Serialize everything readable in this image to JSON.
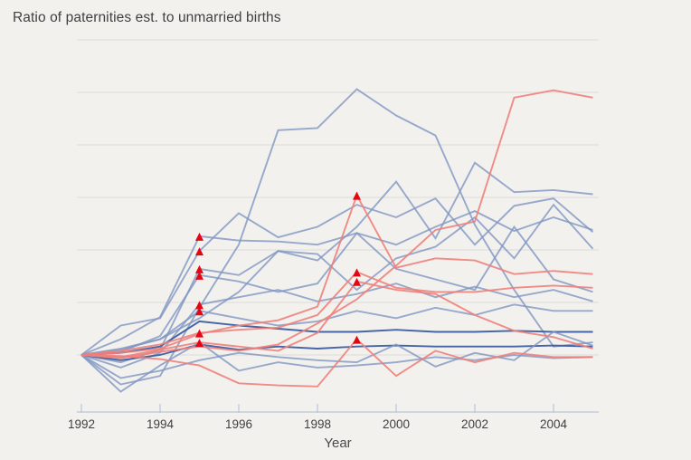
{
  "page": {
    "background": "#f2f1ee"
  },
  "chart_data": {
    "type": "line",
    "title": "Ratio of paternities est. to unmarried births",
    "xlabel": "Year",
    "ylabel": "",
    "x": [
      1992,
      1993,
      1994,
      1995,
      1996,
      1997,
      1998,
      1999,
      2000,
      2001,
      2002,
      2003,
      2004,
      2005
    ],
    "x_ticks": [
      "1992",
      "1994",
      "1996",
      "1998",
      "2000",
      "2002",
      "2004"
    ],
    "x_tick_years": [
      1992,
      1994,
      1996,
      1998,
      2000,
      2002,
      2004
    ],
    "xlim": [
      1992,
      2005.2
    ],
    "y_axis": {
      "tick_labels_visible": false,
      "gridline_values": [
        1.0,
        1.5,
        2.0,
        2.5,
        3.0,
        3.5,
        4.0
      ],
      "baseline_value_1992": 1.0,
      "ylim": [
        0.55,
        4.1
      ]
    },
    "grid": "horizontal-only",
    "legend": "none",
    "colors": {
      "blue": "#8096c2",
      "blue_dark": "#3d5d9f",
      "red": "#f0807a",
      "marker_red": "#e30613",
      "gridline": "#dcdcd8",
      "axis": "#b9c6dc"
    },
    "series": [
      {
        "name": "blue-1-big-peak-1999",
        "group": "blue",
        "shade": "normal",
        "values": [
          1.0,
          0.72,
          0.8,
          1.45,
          2.05,
          3.14,
          3.16,
          3.53,
          3.28,
          3.09,
          2.24,
          1.62,
          1.08,
          1.12
        ]
      },
      {
        "name": "blue-2-zigzag-high",
        "group": "blue",
        "shade": "normal",
        "values": [
          1.0,
          1.05,
          1.15,
          1.35,
          1.6,
          1.99,
          1.9,
          2.22,
          2.65,
          2.11,
          2.83,
          2.55,
          2.57,
          2.53
        ]
      },
      {
        "name": "blue-3",
        "group": "blue",
        "shade": "normal",
        "values": [
          1.0,
          1.15,
          1.36,
          2.13,
          2.09,
          2.08,
          2.05,
          2.16,
          2.05,
          2.22,
          2.37,
          2.18,
          2.31,
          2.19
        ]
      },
      {
        "name": "blue-4",
        "group": "blue",
        "shade": "normal",
        "values": [
          1.0,
          1.28,
          1.35,
          1.99,
          2.35,
          2.12,
          2.22,
          2.43,
          2.31,
          2.49,
          2.05,
          2.42,
          2.49,
          2.17
        ]
      },
      {
        "name": "blue-5",
        "group": "blue",
        "shade": "normal",
        "values": [
          1.0,
          0.93,
          1.05,
          1.82,
          1.76,
          1.99,
          1.96,
          1.62,
          1.92,
          2.03,
          2.31,
          1.92,
          2.43,
          2.01
        ]
      },
      {
        "name": "blue-6",
        "group": "blue",
        "shade": "normal",
        "values": [
          1.0,
          1.03,
          1.18,
          1.76,
          1.7,
          1.6,
          1.68,
          2.16,
          1.82,
          1.72,
          1.62,
          2.22,
          1.72,
          1.6
        ]
      },
      {
        "name": "blue-7",
        "group": "blue",
        "shade": "normal",
        "values": [
          1.0,
          0.88,
          1.02,
          1.48,
          1.55,
          1.62,
          1.51,
          1.58,
          1.68,
          1.55,
          1.65,
          1.55,
          1.62,
          1.51
        ]
      },
      {
        "name": "blue-8",
        "group": "blue",
        "shade": "normal",
        "values": [
          1.0,
          1.06,
          1.15,
          1.42,
          1.35,
          1.28,
          1.32,
          1.42,
          1.35,
          1.45,
          1.38,
          1.48,
          1.42,
          1.42
        ]
      },
      {
        "name": "blue-9-flat",
        "group": "blue",
        "shade": "dark",
        "values": [
          1.0,
          1.02,
          1.08,
          1.32,
          1.28,
          1.25,
          1.22,
          1.22,
          1.24,
          1.22,
          1.22,
          1.23,
          1.22,
          1.22
        ]
      },
      {
        "name": "blue-10-flat",
        "group": "blue",
        "shade": "dark",
        "values": [
          1.0,
          0.95,
          1.0,
          1.1,
          1.05,
          1.08,
          1.06,
          1.08,
          1.09,
          1.08,
          1.08,
          1.08,
          1.09,
          1.08
        ]
      },
      {
        "name": "blue-11",
        "group": "blue",
        "shade": "normal",
        "values": [
          1.0,
          0.78,
          0.85,
          0.95,
          1.02,
          0.98,
          0.95,
          0.93,
          1.1,
          0.89,
          1.02,
          0.95,
          1.22,
          1.09
        ]
      },
      {
        "name": "blue-12-early-dip",
        "group": "blue",
        "shade": "normal",
        "values": [
          1.0,
          0.65,
          0.9,
          1.12,
          0.85,
          0.93,
          0.88,
          0.9,
          0.93,
          0.98,
          0.95,
          1.0,
          0.97,
          0.98
        ]
      },
      {
        "name": "red-1-jump-2003",
        "group": "red",
        "shade": "normal",
        "values": [
          1.0,
          0.97,
          1.03,
          1.08,
          1.04,
          1.1,
          1.3,
          1.53,
          1.85,
          2.19,
          2.27,
          3.45,
          3.52,
          3.45
        ]
      },
      {
        "name": "red-2-peak-1999",
        "group": "red",
        "shade": "normal",
        "values": [
          1.0,
          1.02,
          1.06,
          1.2,
          1.28,
          1.33,
          1.46,
          2.52,
          1.83,
          1.92,
          1.9,
          1.77,
          1.8,
          1.77
        ]
      },
      {
        "name": "red-3",
        "group": "red",
        "shade": "normal",
        "values": [
          1.0,
          1.04,
          1.1,
          1.21,
          1.24,
          1.26,
          1.38,
          1.79,
          1.64,
          1.6,
          1.6,
          1.64,
          1.66,
          1.64
        ]
      },
      {
        "name": "red-4",
        "group": "red",
        "shade": "normal",
        "values": [
          1.0,
          0.98,
          1.05,
          1.12,
          1.08,
          1.04,
          1.21,
          1.7,
          1.62,
          1.58,
          1.38,
          1.23,
          1.17,
          1.06
        ]
      },
      {
        "name": "red-5-low-dip",
        "group": "red",
        "shade": "normal",
        "values": [
          1.0,
          0.99,
          0.96,
          0.9,
          0.73,
          0.71,
          0.7,
          1.15,
          0.8,
          1.04,
          0.93,
          1.02,
          0.98,
          0.98
        ]
      }
    ],
    "markers": {
      "shape": "triangle-up",
      "meaning": "event marker on line",
      "points": [
        [
          1995,
          2.13
        ],
        [
          1995,
          1.99
        ],
        [
          1995,
          1.82
        ],
        [
          1995,
          1.76
        ],
        [
          1995,
          1.48
        ],
        [
          1995,
          1.42
        ],
        [
          1995,
          1.21
        ],
        [
          1995,
          1.12
        ],
        [
          1999,
          2.52
        ],
        [
          1999,
          1.79
        ],
        [
          1999,
          1.7
        ],
        [
          1999,
          1.15
        ]
      ]
    }
  }
}
